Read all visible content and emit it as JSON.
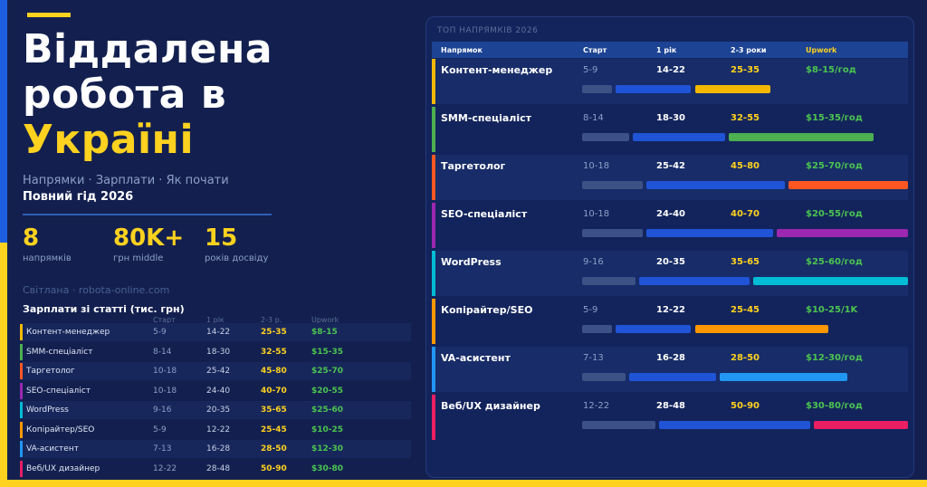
{
  "title": {
    "line1": "Віддалена",
    "line2": "робота в",
    "line3": "Україні"
  },
  "subtitle": "Напрямки · Зарплати · Як почати",
  "guide": "Повний гід 2026",
  "stats": [
    {
      "value": "8",
      "label": "напрямків"
    },
    {
      "value": "80K+",
      "label": "грн middle"
    },
    {
      "value": "15",
      "label": "років досвіду"
    }
  ],
  "author": "Світлана · robota-online.com",
  "salary_table": {
    "title": "Зарплати зі статті (тис. грн)",
    "headers": [
      "Старт",
      "1 рік",
      "2-3 р.",
      "Upwork"
    ],
    "rows": [
      {
        "name": "Контент-менеджер",
        "start": "5-9",
        "y1": "14-22",
        "y23": "25-35",
        "upwork": "$8-15"
      },
      {
        "name": "SMM-спеціаліст",
        "start": "8-14",
        "y1": "18-30",
        "y23": "32-55",
        "upwork": "$15-35"
      },
      {
        "name": "Таргетолог",
        "start": "10-18",
        "y1": "25-42",
        "y23": "45-80",
        "upwork": "$25-70"
      },
      {
        "name": "SEO-спеціаліст",
        "start": "10-18",
        "y1": "24-40",
        "y23": "40-70",
        "upwork": "$20-55"
      },
      {
        "name": "WordPress",
        "start": "9-16",
        "y1": "20-35",
        "y23": "35-65",
        "upwork": "$25-60"
      },
      {
        "name": "Копірайтер/SEO",
        "start": "5-9",
        "y1": "12-22",
        "y23": "25-45",
        "upwork": "$10-25"
      },
      {
        "name": "VA-асистент",
        "start": "7-13",
        "y1": "16-28",
        "y23": "28-50",
        "upwork": "$12-30"
      },
      {
        "name": "Веб/UX дизайнер",
        "start": "12-22",
        "y1": "28-48",
        "y23": "50-90",
        "upwork": "$30-80"
      }
    ]
  },
  "panel": {
    "title": "ТОП НАПРЯМКІВ 2026",
    "headers": {
      "name": "Напрямок",
      "start": "Старт",
      "y1": "1 рік",
      "y23": "2-3 роки",
      "upwork": "Upwork"
    },
    "rows": [
      {
        "name": "Контент-менеджер",
        "start": "5-9",
        "y1": "14-22",
        "y23": "25-35",
        "upwork": "$8-15/год",
        "color": "#f5b800",
        "max_start": 9,
        "max_y1": 22,
        "max_y23": 35
      },
      {
        "name": "SMM-спеціаліст",
        "start": "8-14",
        "y1": "18-30",
        "y23": "32-55",
        "upwork": "$15-35/год",
        "color": "#4caf50",
        "max_start": 14,
        "max_y1": 30,
        "max_y23": 55
      },
      {
        "name": "Таргетолог",
        "start": "10-18",
        "y1": "25-42",
        "y23": "45-80",
        "upwork": "$25-70/год",
        "color": "#ff5722",
        "max_start": 18,
        "max_y1": 42,
        "max_y23": 80
      },
      {
        "name": "SEO-спеціаліст",
        "start": "10-18",
        "y1": "24-40",
        "y23": "40-70",
        "upwork": "$20-55/год",
        "color": "#9c27b0",
        "max_start": 18,
        "max_y1": 40,
        "max_y23": 70
      },
      {
        "name": "WordPress",
        "start": "9-16",
        "y1": "20-35",
        "y23": "35-65",
        "upwork": "$25-60/год",
        "color": "#00bcd4",
        "max_start": 16,
        "max_y1": 35,
        "max_y23": 65
      },
      {
        "name": "Копірайтер/SEO",
        "start": "5-9",
        "y1": "12-22",
        "y23": "25-45",
        "upwork": "$10-25/1K",
        "color": "#ff9800",
        "max_start": 9,
        "max_y1": 22,
        "max_y23": 45
      },
      {
        "name": "VA-асистент",
        "start": "7-13",
        "y1": "16-28",
        "y23": "28-50",
        "upwork": "$12-30/год",
        "color": "#2196f3",
        "max_start": 13,
        "max_y1": 28,
        "max_y23": 50
      },
      {
        "name": "Веб/UX дизайнер",
        "start": "12-22",
        "y1": "28-48",
        "y23": "50-90",
        "upwork": "$30-80/год",
        "color": "#e91e63",
        "max_start": 22,
        "max_y1": 48,
        "max_y23": 90
      }
    ]
  }
}
